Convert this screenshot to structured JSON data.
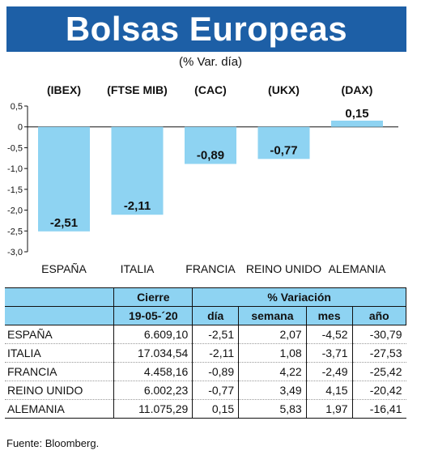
{
  "header": {
    "title": "Bolsas Europeas",
    "subtitle": "(% Var. día)"
  },
  "chart_data": {
    "type": "bar",
    "categories": [
      "ESPAÑA",
      "ITALIA",
      "FRANCIA",
      "REINO UNIDO",
      "ALEMANIA"
    ],
    "index_labels": [
      "(IBEX)",
      "(FTSE MIB)",
      "(CAC)",
      "(UKX)",
      "(DAX)"
    ],
    "values": [
      -2.51,
      -2.11,
      -0.89,
      -0.77,
      0.15
    ],
    "value_labels": [
      "-2,51",
      "-2,11",
      "-0,89",
      "-0,77",
      "0,15"
    ],
    "yticks": [
      "0,5",
      "0",
      "-0,5",
      "-1,0",
      "-1,5",
      "-2,0",
      "-2,5",
      "-3,0"
    ],
    "ylim": [
      -3.0,
      0.5
    ],
    "bar_color": "#8ed3f2",
    "grid": false
  },
  "table": {
    "header_top": {
      "cierre": "Cierre",
      "variacion": "% Variación"
    },
    "header_bottom": [
      "19-05-´20",
      "día",
      "semana",
      "mes",
      "año"
    ],
    "rows": [
      [
        "ESPAÑA",
        "6.609,10",
        "-2,51",
        "2,07",
        "-4,52",
        "-30,79"
      ],
      [
        "ITALIA",
        "17.034,54",
        "-2,11",
        "1,08",
        "-3,71",
        "-27,53"
      ],
      [
        "FRANCIA",
        "4.458,16",
        "-0,89",
        "4,22",
        "-2,49",
        "-25,42"
      ],
      [
        "REINO UNIDO",
        "6.002,23",
        "-0,77",
        "3,49",
        "4,15",
        "-20,42"
      ],
      [
        "ALEMANIA",
        "11.075,29",
        "0,15",
        "5,83",
        "1,97",
        "-16,41"
      ]
    ]
  },
  "source": "Fuente: Bloomberg."
}
